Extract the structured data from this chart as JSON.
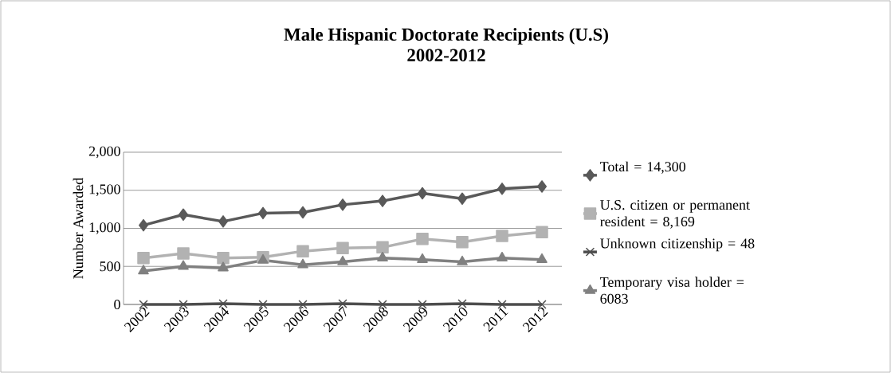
{
  "chart_data": {
    "type": "line",
    "title": "Male Hispanic Doctorate Recipients (U.S)\n2002-2012",
    "ylabel": "Number Awarded",
    "categories": [
      "2002",
      "2003",
      "2004",
      "2005",
      "2006",
      "2007",
      "2008",
      "2009",
      "2010",
      "2011",
      "2012"
    ],
    "series": [
      {
        "name": "Total = 14,300",
        "color": "#595959",
        "marker": "diamond",
        "values": [
          1040,
          1180,
          1090,
          1200,
          1210,
          1310,
          1360,
          1460,
          1390,
          1520,
          1550
        ]
      },
      {
        "name": "U.S. citizen or permanent resident = 8,169",
        "color": "#b2b2b2",
        "marker": "square",
        "values": [
          610,
          670,
          610,
          620,
          700,
          740,
          750,
          860,
          820,
          900,
          950
        ]
      },
      {
        "name": "Unknown citizenship = 48",
        "color": "#4d4d4d",
        "marker": "cross",
        "values": [
          0,
          0,
          10,
          0,
          0,
          10,
          0,
          0,
          10,
          0,
          0
        ]
      },
      {
        "name": "Temporary visa holder = 6083",
        "color": "#808080",
        "marker": "triangle",
        "values": [
          440,
          500,
          480,
          580,
          520,
          560,
          610,
          590,
          560,
          610,
          590
        ]
      }
    ],
    "ylim": [
      0,
      2000
    ],
    "yticks": [
      {
        "value": 0,
        "label": "0"
      },
      {
        "value": 500,
        "label": "500"
      },
      {
        "value": 1000,
        "label": "1,000"
      },
      {
        "value": 1500,
        "label": "1,500"
      },
      {
        "value": 2000,
        "label": "2,000"
      }
    ],
    "grid": "y",
    "legend": "right",
    "line_style": "solid"
  }
}
